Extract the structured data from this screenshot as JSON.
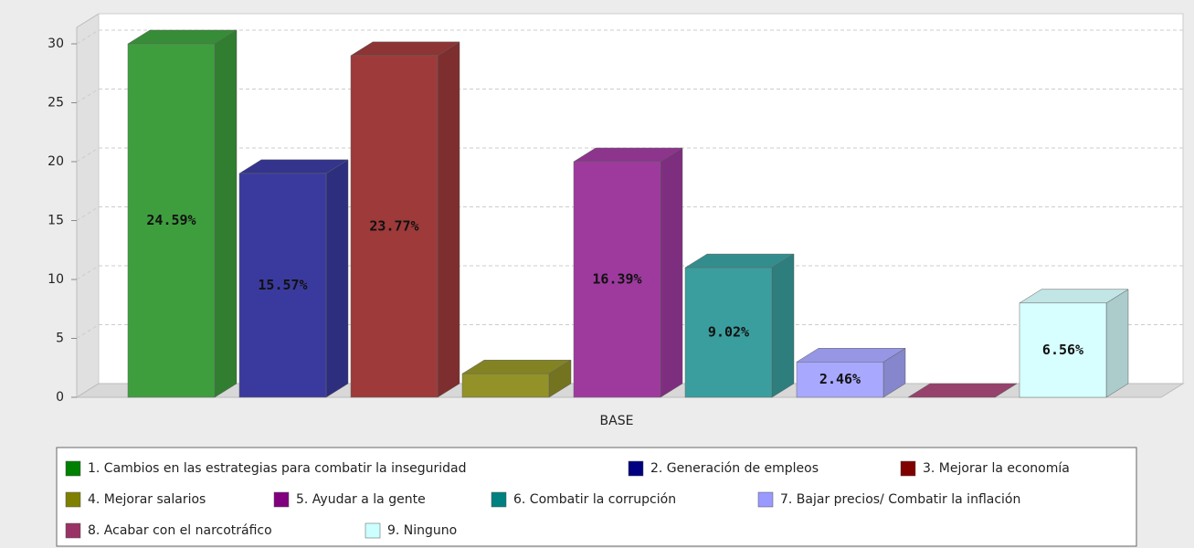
{
  "chart_data": {
    "type": "bar3d",
    "categories": [
      "BASE"
    ],
    "ylim": [
      0,
      30
    ],
    "yticks": [
      0,
      5,
      10,
      15,
      20,
      25,
      30
    ],
    "grid": true,
    "series": [
      {
        "name": "1. Cambios en las estrategias para combatir la inseguridad",
        "color": "#3e9e3e",
        "legend_color": "#008000",
        "values": [
          30
        ],
        "value_labels": [
          "24.59%"
        ]
      },
      {
        "name": "2. Generación de empleos",
        "color": "#3a3a9e",
        "legend_color": "#000080",
        "values": [
          19
        ],
        "value_labels": [
          "15.57%"
        ]
      },
      {
        "name": "3. Mejorar la economía",
        "color": "#9e3a3a",
        "legend_color": "#800000",
        "values": [
          29
        ],
        "value_labels": [
          "23.77%"
        ]
      },
      {
        "name": "4. Mejorar salarios",
        "color": "#929228",
        "legend_color": "#808000",
        "values": [
          2
        ],
        "value_labels": [
          null
        ]
      },
      {
        "name": "5. Ayudar a la gente",
        "color": "#9e3a9e",
        "legend_color": "#800080",
        "values": [
          20
        ],
        "value_labels": [
          "16.39%"
        ]
      },
      {
        "name": "6. Combatir la corrupción",
        "color": "#3a9e9e",
        "legend_color": "#008080",
        "values": [
          11
        ],
        "value_labels": [
          "9.02%"
        ]
      },
      {
        "name": "7. Bajar precios/ Combatir la inflación",
        "color": "#a8a8ff",
        "legend_color": "#9999ff",
        "values": [
          3
        ],
        "value_labels": [
          "2.46%"
        ]
      },
      {
        "name": "8. Acabar con el narcotráfico",
        "color": "#a84a7a",
        "legend_color": "#993366",
        "values": [
          0
        ],
        "value_labels": [
          null
        ]
      },
      {
        "name": "9. Ninguno",
        "color": "#d8ffff",
        "legend_color": "#ccffff",
        "values": [
          8
        ],
        "value_labels": [
          "6.56%"
        ]
      }
    ]
  }
}
